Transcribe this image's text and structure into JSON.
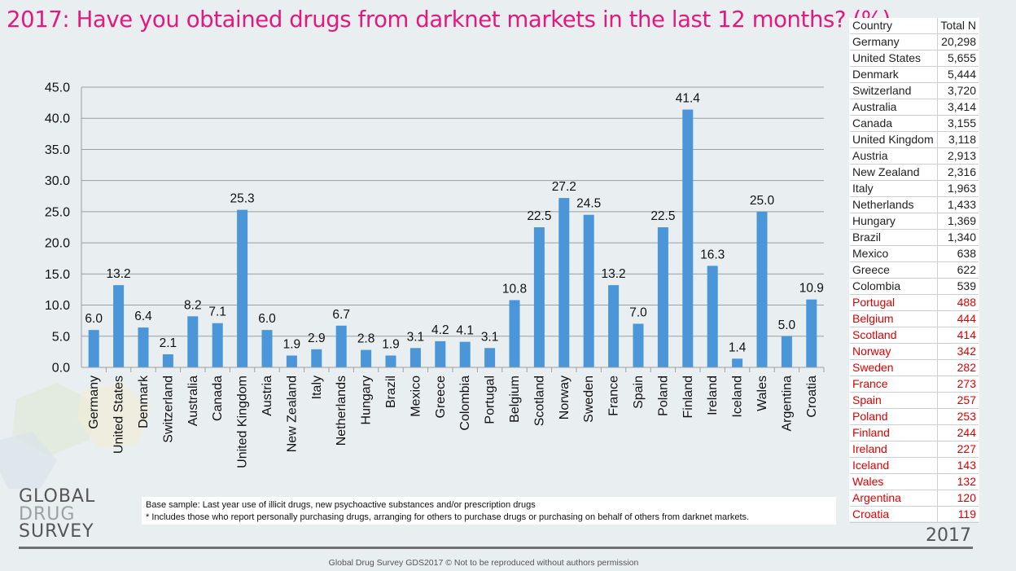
{
  "title": "2017: Have you obtained drugs from darknet markets in the last 12 months? (%)",
  "chart_data": {
    "type": "bar",
    "title": "2017: Have you obtained drugs from darknet markets in the last 12 months? (%)",
    "xlabel": "",
    "ylabel": "",
    "ylim": [
      0,
      45
    ],
    "yticks": [
      "0.0",
      "5.0",
      "10.0",
      "15.0",
      "20.0",
      "25.0",
      "30.0",
      "35.0",
      "40.0",
      "45.0"
    ],
    "grid": true,
    "categories": [
      "Germany",
      "United States",
      "Denmark",
      "Switzerland",
      "Australia",
      "Canada",
      "United Kingdom",
      "Austria",
      "New Zealand",
      "Italy",
      "Netherlands",
      "Hungary",
      "Brazil",
      "Mexico",
      "Greece",
      "Colombia",
      "Portugal",
      "Belgium",
      "Scotland",
      "Norway",
      "Sweden",
      "France",
      "Spain",
      "Poland",
      "Finland",
      "Ireland",
      "Iceland",
      "Wales",
      "Argentina",
      "Croatia"
    ],
    "values": [
      6.0,
      13.2,
      6.4,
      2.1,
      8.2,
      7.1,
      25.3,
      6.0,
      1.9,
      2.9,
      6.7,
      2.8,
      1.9,
      3.1,
      4.2,
      4.1,
      3.1,
      10.8,
      22.5,
      27.2,
      24.5,
      13.2,
      7.0,
      22.5,
      41.4,
      16.3,
      1.4,
      25.0,
      5.0,
      10.9
    ],
    "value_labels": [
      "6.0",
      "13.2",
      "6.4",
      "2.1",
      "8.2",
      "7.1",
      "25.3",
      "6.0",
      "1.9",
      "2.9",
      "6.7",
      "2.8",
      "1.9",
      "3.1",
      "4.2",
      "4.1",
      "3.1",
      "10.8",
      "22.5",
      "27.2",
      "24.5",
      "13.2",
      "7.0",
      "22.5",
      "41.4",
      "16.3",
      "1.4",
      "25.0",
      "5.0",
      "10.9"
    ],
    "bar_color": "#4a96d9"
  },
  "sample_table": {
    "headers": [
      "Country",
      "Total N"
    ],
    "rows": [
      {
        "country": "Germany",
        "n": "20,298",
        "highlight": false
      },
      {
        "country": "United States",
        "n": "5,655",
        "highlight": false
      },
      {
        "country": "Denmark",
        "n": "5,444",
        "highlight": false
      },
      {
        "country": "Switzerland",
        "n": "3,720",
        "highlight": false
      },
      {
        "country": "Australia",
        "n": "3,414",
        "highlight": false
      },
      {
        "country": "Canada",
        "n": "3,155",
        "highlight": false
      },
      {
        "country": "United Kingdom",
        "n": "3,118",
        "highlight": false
      },
      {
        "country": "Austria",
        "n": "2,913",
        "highlight": false
      },
      {
        "country": "New Zealand",
        "n": "2,316",
        "highlight": false
      },
      {
        "country": "Italy",
        "n": "1,963",
        "highlight": false
      },
      {
        "country": "Netherlands",
        "n": "1,433",
        "highlight": false
      },
      {
        "country": "Hungary",
        "n": "1,369",
        "highlight": false
      },
      {
        "country": "Brazil",
        "n": "1,340",
        "highlight": false
      },
      {
        "country": "Mexico",
        "n": "638",
        "highlight": false
      },
      {
        "country": "Greece",
        "n": "622",
        "highlight": false
      },
      {
        "country": "Colombia",
        "n": "539",
        "highlight": false
      },
      {
        "country": "Portugal",
        "n": "488",
        "highlight": true
      },
      {
        "country": "Belgium",
        "n": "444",
        "highlight": true
      },
      {
        "country": "Scotland",
        "n": "414",
        "highlight": true
      },
      {
        "country": "Norway",
        "n": "342",
        "highlight": true
      },
      {
        "country": "Sweden",
        "n": "282",
        "highlight": true
      },
      {
        "country": "France",
        "n": "273",
        "highlight": true
      },
      {
        "country": "Spain",
        "n": "257",
        "highlight": true
      },
      {
        "country": "Poland",
        "n": "253",
        "highlight": true
      },
      {
        "country": "Finland",
        "n": "244",
        "highlight": true
      },
      {
        "country": "Ireland",
        "n": "227",
        "highlight": true
      },
      {
        "country": "Iceland",
        "n": "143",
        "highlight": true
      },
      {
        "country": "Wales",
        "n": "132",
        "highlight": true
      },
      {
        "country": "Argentina",
        "n": "120",
        "highlight": true
      },
      {
        "country": "Croatia",
        "n": "119",
        "highlight": true
      }
    ],
    "highlight_color": "#e00000"
  },
  "footnote": {
    "line1": "Base sample: Last year use of  illicit drugs, new psychoactive substances and/or prescription drugs",
    "line2": "* Includes those who report personally purchasing drugs, arranging for others to purchase drugs or purchasing on behalf of others from darknet markets."
  },
  "logo": {
    "line1": "GLOBAL",
    "line2": "DRUG",
    "line3": "SURVEY"
  },
  "year": "2017",
  "copyright": "Global Drug Survey GDS2017 © Not to be reproduced without authors permission",
  "colors": {
    "title": "#e5197d",
    "background": "#e9eef0"
  }
}
